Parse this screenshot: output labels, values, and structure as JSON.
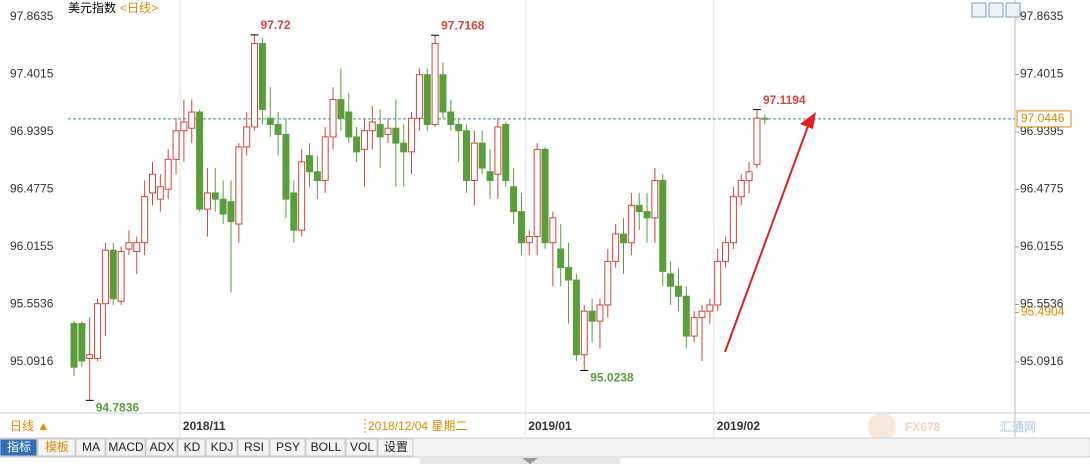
{
  "header": {
    "name": "美元指数",
    "period": "<日线>"
  },
  "chart_data": {
    "type": "candlestick",
    "categories": [
      null,
      null,
      null,
      null,
      null,
      null,
      null,
      null,
      null,
      null,
      null,
      null,
      null,
      null,
      "2018/11",
      null,
      null,
      null,
      null,
      null,
      null,
      null,
      null,
      null,
      null,
      null,
      null,
      null,
      null,
      null,
      null,
      null,
      null,
      null,
      null,
      null,
      null,
      null,
      null,
      null,
      null,
      null,
      null,
      null,
      null,
      null,
      null,
      null,
      null,
      null,
      null,
      null,
      null,
      null,
      null,
      null,
      null,
      null,
      "2019/01",
      null,
      null,
      null,
      null,
      null,
      null,
      null,
      null,
      null,
      null,
      null,
      null,
      null,
      null,
      null,
      null,
      null,
      null,
      null,
      null,
      null,
      null,
      null,
      "2019/02",
      null,
      null,
      null,
      null,
      null,
      null
    ],
    "open": [
      95.4,
      95.4,
      95.12,
      95.12,
      95.56,
      95.99,
      95.58,
      96.0,
      95.98,
      96.05,
      96.45,
      96.4,
      96.48,
      96.72,
      96.95,
      96.97,
      97.1,
      96.32,
      96.45,
      96.4,
      96.38,
      96.2,
      96.82,
      96.98,
      97.65,
      97.05,
      97.0,
      96.92,
      96.45,
      96.15,
      96.75,
      96.62,
      96.55,
      96.9,
      97.2,
      97.1,
      96.9,
      96.8,
      96.95,
      97.0,
      96.92,
      96.97,
      96.85,
      96.78,
      97.05,
      97.4,
      97.0,
      97.4,
      97.1,
      97.0,
      96.95,
      96.55,
      96.85,
      96.62,
      96.6,
      97.0,
      96.5,
      96.3,
      96.05,
      96.1,
      96.8,
      96.05,
      96.0,
      95.85,
      95.75,
      95.15,
      95.5,
      95.42,
      95.55,
      95.9,
      96.12,
      96.05,
      96.35,
      96.3,
      96.25,
      96.55,
      95.8,
      95.7,
      95.62,
      95.3,
      95.45,
      95.5,
      95.55,
      95.9,
      96.05,
      96.42,
      96.55,
      96.68,
      97.05
    ],
    "high": [
      95.42,
      95.42,
      95.45,
      95.6,
      96.05,
      96.05,
      96.02,
      96.15,
      96.1,
      96.55,
      96.7,
      96.6,
      96.8,
      97.05,
      97.2,
      97.2,
      97.12,
      96.65,
      96.65,
      96.55,
      96.55,
      96.85,
      97.1,
      97.72,
      97.6976,
      97.3,
      97.1,
      97.05,
      96.55,
      96.8,
      96.85,
      96.75,
      96.98,
      97.3,
      97.45,
      97.25,
      96.98,
      97.05,
      97.15,
      97.12,
      97.05,
      97.2,
      97.0,
      97.1,
      97.45,
      97.45,
      97.7168,
      97.5,
      97.2,
      97.05,
      97.0,
      96.95,
      96.95,
      96.8,
      97.05,
      97.02,
      96.65,
      96.45,
      96.15,
      96.85,
      96.82,
      96.3,
      96.2,
      96.05,
      95.8,
      95.55,
      95.6,
      95.6,
      96.0,
      96.2,
      96.25,
      96.45,
      96.45,
      96.45,
      96.65,
      96.6,
      95.9,
      95.85,
      95.7,
      95.5,
      95.55,
      95.6,
      96.0,
      96.1,
      96.5,
      96.6,
      96.7,
      97.1194,
      97.08
    ],
    "low": [
      94.98,
      95.05,
      94.7836,
      95.1,
      95.3,
      95.55,
      95.55,
      95.95,
      95.8,
      95.95,
      96.35,
      96.3,
      96.4,
      96.6,
      96.7,
      96.85,
      96.3,
      96.1,
      96.3,
      96.2,
      95.65,
      96.05,
      96.75,
      96.95,
      97.0,
      96.9,
      96.75,
      96.25,
      96.05,
      96.1,
      96.5,
      96.4,
      96.45,
      96.8,
      96.95,
      96.85,
      96.7,
      96.5,
      96.8,
      96.65,
      96.85,
      96.5,
      96.5,
      96.6,
      96.95,
      96.95,
      96.98,
      97.05,
      96.95,
      96.7,
      96.45,
      96.35,
      96.6,
      96.4,
      96.4,
      96.5,
      96.2,
      95.95,
      95.95,
      95.95,
      96.0,
      95.7,
      95.7,
      95.4,
      95.1,
      95.0238,
      95.25,
      95.2,
      95.45,
      95.85,
      95.8,
      95.95,
      96.15,
      96.05,
      96.05,
      95.7,
      95.55,
      95.5,
      95.2,
      95.25,
      95.1,
      95.4,
      95.5,
      95.85,
      96.0,
      96.35,
      96.45,
      96.65,
      97.0
    ],
    "close": [
      95.05,
      95.1,
      95.15,
      95.56,
      95.99,
      95.6,
      95.98,
      96.05,
      96.05,
      96.42,
      96.6,
      96.5,
      96.72,
      96.95,
      97.02,
      97.1,
      96.32,
      96.45,
      96.4,
      96.28,
      96.22,
      96.82,
      96.98,
      97.65,
      97.12,
      97.0,
      96.92,
      96.4,
      96.15,
      96.7,
      96.62,
      96.55,
      96.9,
      97.2,
      97.05,
      96.9,
      96.78,
      96.95,
      97.02,
      96.9,
      96.97,
      96.85,
      96.78,
      97.05,
      97.4,
      97.0,
      97.65,
      97.1,
      97.0,
      96.95,
      96.55,
      96.85,
      96.65,
      96.55,
      96.98,
      96.55,
      96.3,
      96.05,
      96.1,
      96.8,
      96.05,
      96.25,
      95.85,
      95.75,
      95.15,
      95.5,
      95.42,
      95.55,
      95.9,
      96.12,
      96.05,
      96.35,
      96.3,
      96.25,
      96.55,
      95.82,
      95.7,
      95.62,
      95.3,
      95.45,
      95.5,
      95.55,
      95.9,
      96.05,
      96.42,
      96.55,
      96.62,
      97.05,
      97.0446
    ],
    "up_color": "#d2463c",
    "down_color": "#5a9e3c",
    "ylim": [
      94.706,
      98.0
    ],
    "yticks": [
      97.8635,
      97.4015,
      96.9395,
      96.4775,
      96.0155,
      95.5536,
      95.0916
    ],
    "ref_price": 95.4904,
    "crosshair": "2018/12/04  星期二"
  },
  "toolbar": {
    "period": "日线 ▲",
    "tabs": [
      "指标",
      "模板",
      "MA",
      "MACD",
      "ADX",
      "KD",
      "KDJ",
      "RSI",
      "PSY",
      "BOLL",
      "VOL",
      "设置"
    ]
  },
  "watermark": {
    "brand": "FX678",
    "site": "汇通网"
  }
}
